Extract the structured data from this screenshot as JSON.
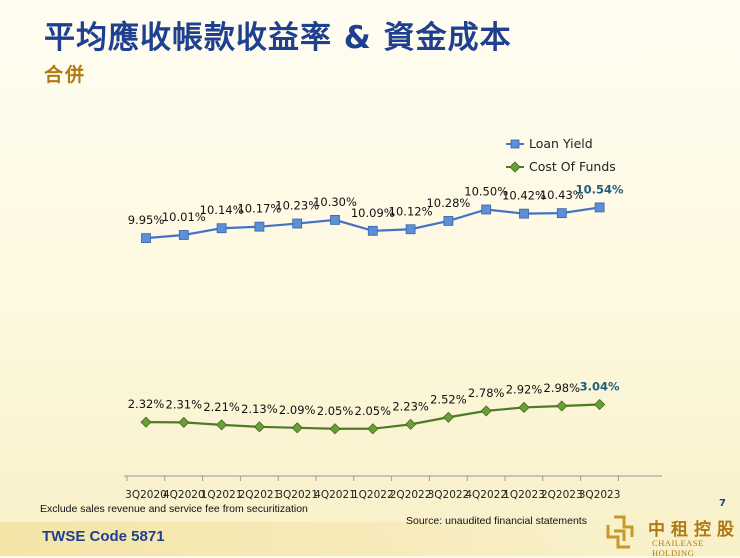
{
  "slide": {
    "title": "平均應收帳款收益率 & 資金成本",
    "subtitle": "合併",
    "page_number": "7",
    "footnote": "Exclude sales revenue and service fee from securitization",
    "source": "Source: unaudited financial statements",
    "stock_code": "TWSE Code 5871",
    "logo": {
      "chinese": "中租控股",
      "english": "CHAILEASE HOLDING"
    },
    "colors": {
      "title": "#1f3f8f",
      "accent_gold": "#b07a12",
      "loan_yield_line": "#4472c4",
      "loan_yield_marker": "#5b8fd6",
      "cost_of_funds_line": "#4f7a28",
      "cost_of_funds_marker": "#6b9e3a",
      "highlight_label": "#1f5f7a"
    }
  },
  "chart_data": {
    "type": "line",
    "title": "",
    "xlabel": "",
    "ylabel": "",
    "grid": false,
    "legend_position": "top-right",
    "categories": [
      "3Q2020",
      "4Q2020",
      "1Q2021",
      "2Q2021",
      "3Q2021",
      "4Q2021",
      "1Q2022",
      "2Q2022",
      "3Q2022",
      "4Q2022",
      "1Q2023",
      "2Q2023",
      "3Q2023"
    ],
    "series": [
      {
        "name": "Loan Yield",
        "values": [
          9.95,
          10.01,
          10.14,
          10.17,
          10.23,
          10.3,
          10.09,
          10.12,
          10.28,
          10.5,
          10.42,
          10.43,
          10.54
        ],
        "labels": [
          "9.95%",
          "10.01%",
          "10.14%",
          "10.17%",
          "10.23%",
          "10.30%",
          "10.09%",
          "10.12%",
          "10.28%",
          "10.50%",
          "10.42%",
          "10.43%",
          "10.54%"
        ],
        "marker": "square"
      },
      {
        "name": "Cost Of Funds",
        "values": [
          2.32,
          2.31,
          2.21,
          2.13,
          2.09,
          2.05,
          2.05,
          2.23,
          2.52,
          2.78,
          2.92,
          2.98,
          3.04
        ],
        "labels": [
          "2.32%",
          "2.31%",
          "2.21%",
          "2.13%",
          "2.09%",
          "2.05%",
          "2.05%",
          "2.23%",
          "2.52%",
          "2.78%",
          "2.92%",
          "2.98%",
          "3.04%"
        ],
        "marker": "diamond"
      }
    ]
  }
}
